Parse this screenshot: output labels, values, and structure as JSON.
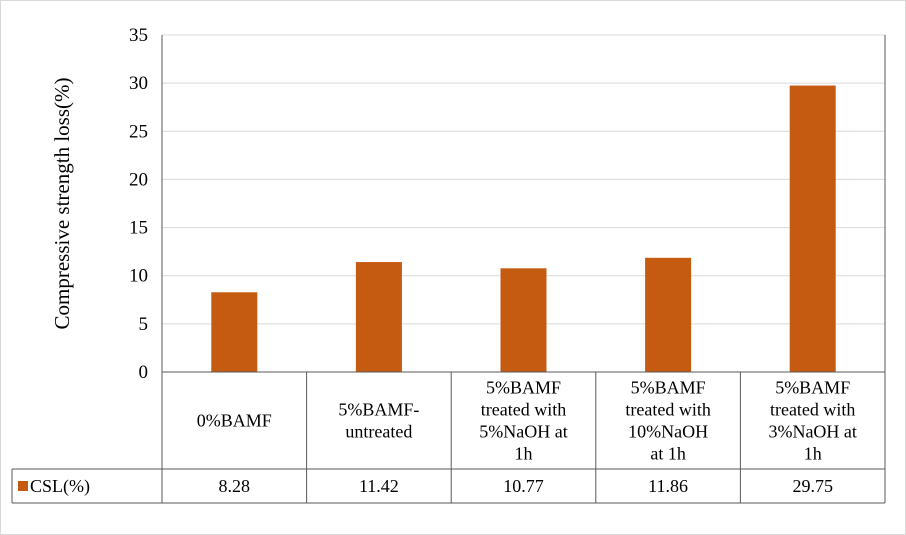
{
  "chart_data": {
    "type": "bar",
    "ylabel": "Compressive strength loss(%)",
    "ylim": [
      0,
      35
    ],
    "yticks": [
      0,
      5,
      10,
      15,
      20,
      25,
      30,
      35
    ],
    "grid": true,
    "categories": [
      [
        "0%BAMF"
      ],
      [
        "5%BAMF-",
        "untreated"
      ],
      [
        "5%BAMF",
        "treated with",
        "5%NaOH at",
        "1h"
      ],
      [
        "5%BAMF",
        "treated with",
        "10%NaOH",
        "at 1h"
      ],
      [
        "5%BAMF",
        "treated with",
        "3%NaOH at",
        "1h"
      ]
    ],
    "series": [
      {
        "name": "CSL(%)",
        "color": "#c55a11",
        "values": [
          8.28,
          11.42,
          10.77,
          11.86,
          29.75
        ],
        "value_labels": [
          "8.28",
          "11.42",
          "10.77",
          "11.86",
          "29.75"
        ]
      }
    ],
    "legend": "data-table"
  }
}
